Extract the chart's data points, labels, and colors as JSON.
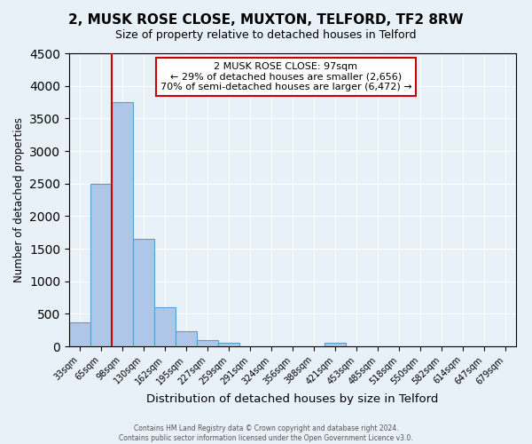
{
  "title": "2, MUSK ROSE CLOSE, MUXTON, TELFORD, TF2 8RW",
  "subtitle": "Size of property relative to detached houses in Telford",
  "xlabel": "Distribution of detached houses by size in Telford",
  "ylabel": "Number of detached properties",
  "bar_labels": [
    "33sqm",
    "65sqm",
    "98sqm",
    "130sqm",
    "162sqm",
    "195sqm",
    "227sqm",
    "259sqm",
    "291sqm",
    "324sqm",
    "356sqm",
    "388sqm",
    "421sqm",
    "453sqm",
    "485sqm",
    "518sqm",
    "550sqm",
    "582sqm",
    "614sqm",
    "647sqm",
    "679sqm"
  ],
  "bar_values": [
    375,
    2500,
    3750,
    1650,
    600,
    230,
    100,
    50,
    0,
    0,
    0,
    0,
    50,
    0,
    0,
    0,
    0,
    0,
    0,
    0,
    0
  ],
  "bar_color": "#aec6e8",
  "bar_edgecolor": "#5a9fd4",
  "ylim": [
    0,
    4500
  ],
  "yticks": [
    0,
    500,
    1000,
    1500,
    2000,
    2500,
    3000,
    3500,
    4000,
    4500
  ],
  "vline_color": "#cc0000",
  "annotation_title": "2 MUSK ROSE CLOSE: 97sqm",
  "annotation_line1": "← 29% of detached houses are smaller (2,656)",
  "annotation_line2": "70% of semi-detached houses are larger (6,472) →",
  "annotation_box_color": "#cc0000",
  "footer1": "Contains HM Land Registry data © Crown copyright and database right 2024.",
  "footer2": "Contains public sector information licensed under the Open Government Licence v3.0.",
  "background_color": "#e8f0f8",
  "plot_background": "#e8f0f8"
}
